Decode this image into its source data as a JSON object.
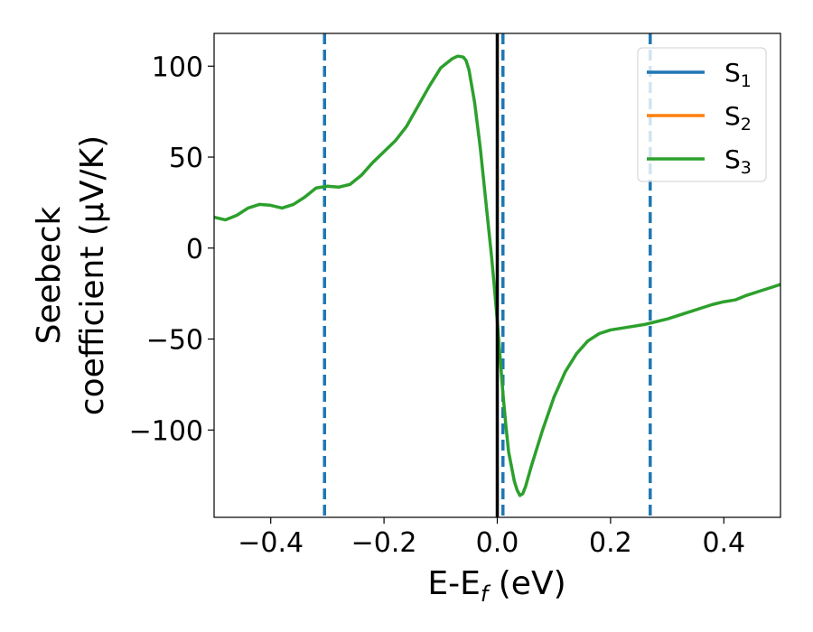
{
  "chart_data": {
    "type": "line",
    "xlabel": {
      "main": "E-E",
      "sub": "f",
      "unit": " (eV)"
    },
    "ylabel": {
      "line1": "Seebeck",
      "line2": "coefficient  (μV/K)"
    },
    "xlim": [
      -0.5,
      0.5
    ],
    "ylim": [
      -148,
      118
    ],
    "xticks": [
      -0.4,
      -0.2,
      0.0,
      0.2,
      0.4
    ],
    "xtick_labels": [
      "−0.4",
      "−0.2",
      "0.0",
      "0.2",
      "0.4"
    ],
    "yticks": [
      100,
      50,
      0,
      -50,
      -100
    ],
    "ytick_labels": [
      "100",
      "50",
      "0",
      "−50",
      "−100"
    ],
    "grid": false,
    "legend_position": "top-right",
    "series": [
      {
        "name": "S",
        "sub": "1",
        "color": "#1f77b4",
        "x": [],
        "y": []
      },
      {
        "name": "S",
        "sub": "2",
        "color": "#ff7f0e",
        "x": [],
        "y": []
      },
      {
        "name": "S",
        "sub": "3",
        "color": "#2ca02c",
        "x": [
          -0.5,
          -0.48,
          -0.46,
          -0.44,
          -0.42,
          -0.4,
          -0.38,
          -0.36,
          -0.34,
          -0.32,
          -0.3,
          -0.28,
          -0.26,
          -0.24,
          -0.22,
          -0.2,
          -0.18,
          -0.16,
          -0.14,
          -0.12,
          -0.1,
          -0.08,
          -0.07,
          -0.06,
          -0.055,
          -0.05,
          -0.04,
          -0.03,
          -0.02,
          -0.01,
          -0.005,
          0.0,
          0.005,
          0.01,
          0.015,
          0.02,
          0.03,
          0.035,
          0.04,
          0.045,
          0.05,
          0.06,
          0.08,
          0.1,
          0.12,
          0.14,
          0.16,
          0.18,
          0.2,
          0.22,
          0.24,
          0.26,
          0.28,
          0.3,
          0.32,
          0.34,
          0.36,
          0.38,
          0.4,
          0.42,
          0.44,
          0.46,
          0.48,
          0.5
        ],
        "y": [
          17,
          15.5,
          18,
          22,
          24,
          23.5,
          22,
          24,
          28,
          33,
          34,
          33.5,
          35,
          40,
          47,
          53,
          59,
          67,
          78,
          89,
          99,
          104,
          105.5,
          105,
          103,
          98,
          80,
          55,
          25,
          -5,
          -22,
          -40,
          -60,
          -80,
          -97,
          -112,
          -128,
          -133,
          -136,
          -135,
          -131,
          -120,
          -100,
          -82,
          -68,
          -58,
          -51,
          -47,
          -45,
          -44,
          -43,
          -42,
          -40.5,
          -39,
          -37,
          -35,
          -33,
          -31,
          -29.5,
          -28.5,
          -26,
          -24,
          -22,
          -20
        ]
      }
    ],
    "vlines": [
      {
        "x": -0.305,
        "style": "dashed",
        "color": "#1f77b4"
      },
      {
        "x": 0.01,
        "style": "dashed",
        "color": "#1f77b4"
      },
      {
        "x": 0.27,
        "style": "dashed",
        "color": "#1f77b4"
      },
      {
        "x": 0.0,
        "style": "solid",
        "color": "#000000"
      }
    ]
  }
}
